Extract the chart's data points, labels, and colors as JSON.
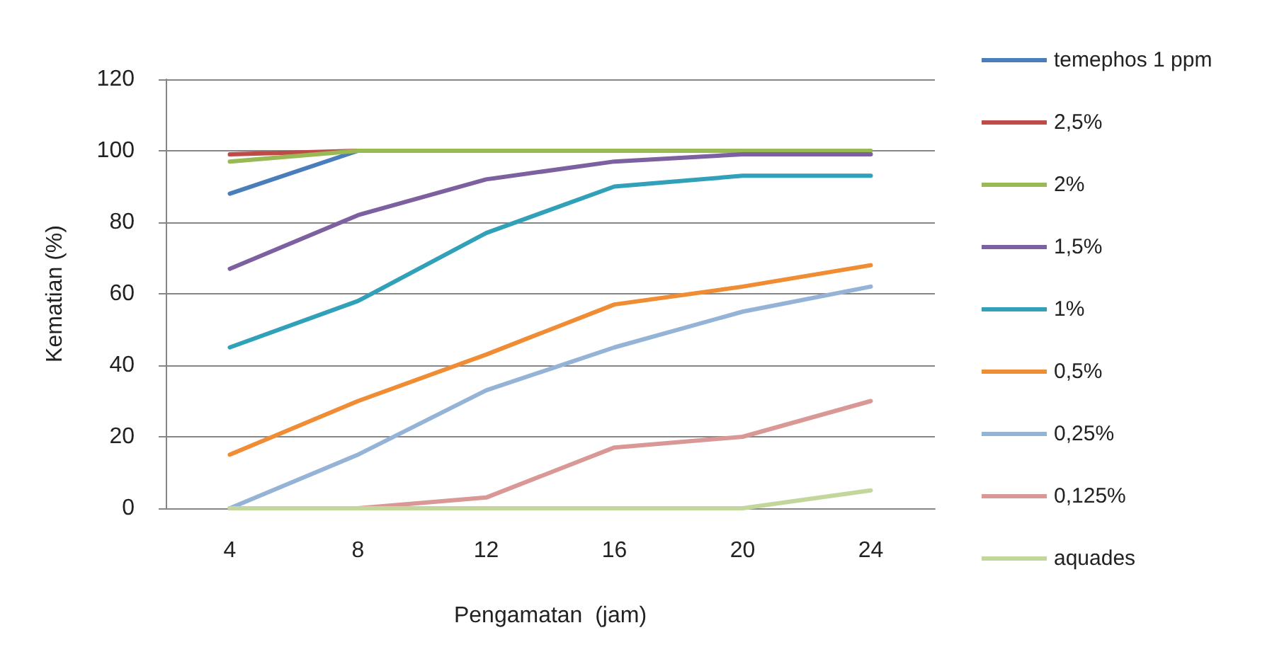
{
  "chart_data": {
    "type": "line",
    "xlabel": "Pengamatan  (jam)",
    "ylabel": "Kematian (%)",
    "categories": [
      "4",
      "8",
      "12",
      "16",
      "20",
      "24"
    ],
    "ylim": [
      0,
      120
    ],
    "yticks": [
      0,
      20,
      40,
      60,
      80,
      100,
      120
    ],
    "grid": "y",
    "legend": "right",
    "marker": "none",
    "line_style": "solid",
    "series": [
      {
        "name": "temephos 1 ppm",
        "color": "#4a7ebb",
        "values": [
          88,
          100,
          null,
          null,
          null,
          null
        ]
      },
      {
        "name": "2,5%",
        "color": "#be4b48",
        "values": [
          99,
          100,
          null,
          null,
          null,
          null
        ]
      },
      {
        "name": "2%",
        "color": "#98b954",
        "values": [
          97,
          100,
          100,
          100,
          100,
          100
        ]
      },
      {
        "name": "1,5%",
        "color": "#7d60a0",
        "values": [
          67,
          82,
          92,
          97,
          99,
          99
        ]
      },
      {
        "name": "1%",
        "color": "#31a0b9",
        "values": [
          45,
          58,
          77,
          90,
          93,
          93
        ]
      },
      {
        "name": "0,5%",
        "color": "#f08c33",
        "values": [
          15,
          30,
          43,
          57,
          62,
          68
        ]
      },
      {
        "name": "0,25%",
        "color": "#95b3d7",
        "values": [
          0,
          15,
          33,
          45,
          55,
          62
        ]
      },
      {
        "name": "0,125%",
        "color": "#d99795",
        "values": [
          0,
          0,
          3,
          17,
          20,
          30
        ]
      },
      {
        "name": "aquades",
        "color": "#c3d69b",
        "values": [
          0,
          0,
          0,
          0,
          0,
          5
        ]
      }
    ]
  }
}
